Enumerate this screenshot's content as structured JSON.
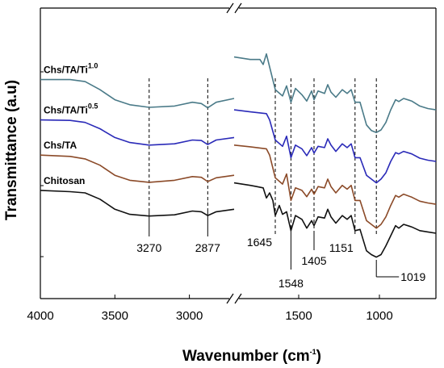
{
  "chart_data": {
    "type": "line",
    "xlabel": "Wavenumber (cm",
    "xlabel_sup": "-1",
    "xlabel_end": ")",
    "ylabel": "Transmittance (a.u)",
    "x_reversed": true,
    "axis_break": true,
    "segments": [
      {
        "xlim": [
          4000,
          2700
        ],
        "ticks": [
          4000,
          3500,
          3000
        ]
      },
      {
        "xlim": [
          1900,
          650
        ],
        "ticks": [
          1500,
          1000
        ]
      }
    ],
    "grid": false,
    "series": [
      {
        "name": "Chs/TA/Ti",
        "name_sup": "1.0",
        "color": "#4a7a88",
        "points": [
          [
            4000,
            0.78
          ],
          [
            3800,
            0.78
          ],
          [
            3700,
            0.772
          ],
          [
            3600,
            0.74
          ],
          [
            3500,
            0.7
          ],
          [
            3400,
            0.68
          ],
          [
            3270,
            0.67
          ],
          [
            3100,
            0.675
          ],
          [
            2980,
            0.69
          ],
          [
            2920,
            0.685
          ],
          [
            2877,
            0.668
          ],
          [
            2820,
            0.69
          ],
          [
            2700,
            0.705
          ],
          [
            1900,
            0.87
          ],
          [
            1800,
            0.86
          ],
          [
            1740,
            0.86
          ],
          [
            1720,
            0.84
          ],
          [
            1700,
            0.882
          ],
          [
            1680,
            0.83
          ],
          [
            1645,
            0.74
          ],
          [
            1600,
            0.715
          ],
          [
            1575,
            0.755
          ],
          [
            1548,
            0.69
          ],
          [
            1520,
            0.745
          ],
          [
            1480,
            0.72
          ],
          [
            1450,
            0.695
          ],
          [
            1420,
            0.735
          ],
          [
            1405,
            0.7
          ],
          [
            1380,
            0.735
          ],
          [
            1340,
            0.725
          ],
          [
            1320,
            0.76
          ],
          [
            1300,
            0.73
          ],
          [
            1270,
            0.71
          ],
          [
            1230,
            0.74
          ],
          [
            1200,
            0.725
          ],
          [
            1175,
            0.74
          ],
          [
            1151,
            0.69
          ],
          [
            1120,
            0.69
          ],
          [
            1080,
            0.6
          ],
          [
            1050,
            0.578
          ],
          [
            1019,
            0.57
          ],
          [
            990,
            0.58
          ],
          [
            960,
            0.61
          ],
          [
            930,
            0.66
          ],
          [
            900,
            0.7
          ],
          [
            880,
            0.693
          ],
          [
            850,
            0.705
          ],
          [
            800,
            0.695
          ],
          [
            750,
            0.675
          ],
          [
            700,
            0.665
          ],
          [
            650,
            0.66
          ]
        ]
      },
      {
        "name": "Chs/TA/Ti",
        "name_sup": "0.5",
        "color": "#2a2ab8",
        "points": [
          [
            4000,
            0.62
          ],
          [
            3800,
            0.618
          ],
          [
            3700,
            0.61
          ],
          [
            3600,
            0.585
          ],
          [
            3500,
            0.55
          ],
          [
            3400,
            0.53
          ],
          [
            3270,
            0.52
          ],
          [
            3100,
            0.525
          ],
          [
            2980,
            0.54
          ],
          [
            2920,
            0.538
          ],
          [
            2877,
            0.522
          ],
          [
            2820,
            0.54
          ],
          [
            2700,
            0.55
          ],
          [
            1900,
            0.66
          ],
          [
            1800,
            0.652
          ],
          [
            1700,
            0.645
          ],
          [
            1680,
            0.62
          ],
          [
            1645,
            0.54
          ],
          [
            1600,
            0.515
          ],
          [
            1575,
            0.555
          ],
          [
            1548,
            0.47
          ],
          [
            1520,
            0.52
          ],
          [
            1480,
            0.505
          ],
          [
            1450,
            0.478
          ],
          [
            1420,
            0.51
          ],
          [
            1405,
            0.488
          ],
          [
            1380,
            0.515
          ],
          [
            1340,
            0.51
          ],
          [
            1320,
            0.545
          ],
          [
            1300,
            0.52
          ],
          [
            1270,
            0.495
          ],
          [
            1230,
            0.525
          ],
          [
            1200,
            0.51
          ],
          [
            1175,
            0.525
          ],
          [
            1151,
            0.47
          ],
          [
            1120,
            0.47
          ],
          [
            1080,
            0.4
          ],
          [
            1050,
            0.385
          ],
          [
            1019,
            0.37
          ],
          [
            990,
            0.385
          ],
          [
            960,
            0.41
          ],
          [
            930,
            0.455
          ],
          [
            900,
            0.49
          ],
          [
            880,
            0.485
          ],
          [
            850,
            0.495
          ],
          [
            800,
            0.485
          ],
          [
            750,
            0.468
          ],
          [
            700,
            0.46
          ],
          [
            650,
            0.455
          ]
        ]
      },
      {
        "name": "Chs/TA",
        "name_sup": "",
        "color": "#8b4a28",
        "points": [
          [
            4000,
            0.48
          ],
          [
            3800,
            0.475
          ],
          [
            3700,
            0.465
          ],
          [
            3600,
            0.44
          ],
          [
            3500,
            0.4
          ],
          [
            3400,
            0.38
          ],
          [
            3270,
            0.372
          ],
          [
            3100,
            0.38
          ],
          [
            2980,
            0.395
          ],
          [
            2920,
            0.392
          ],
          [
            2877,
            0.375
          ],
          [
            2820,
            0.39
          ],
          [
            2700,
            0.4
          ],
          [
            1900,
            0.52
          ],
          [
            1800,
            0.513
          ],
          [
            1700,
            0.505
          ],
          [
            1680,
            0.48
          ],
          [
            1645,
            0.39
          ],
          [
            1600,
            0.365
          ],
          [
            1575,
            0.405
          ],
          [
            1548,
            0.3
          ],
          [
            1520,
            0.35
          ],
          [
            1480,
            0.34
          ],
          [
            1450,
            0.315
          ],
          [
            1420,
            0.345
          ],
          [
            1405,
            0.325
          ],
          [
            1380,
            0.355
          ],
          [
            1340,
            0.35
          ],
          [
            1320,
            0.385
          ],
          [
            1300,
            0.355
          ],
          [
            1270,
            0.33
          ],
          [
            1230,
            0.36
          ],
          [
            1200,
            0.345
          ],
          [
            1175,
            0.36
          ],
          [
            1151,
            0.3
          ],
          [
            1120,
            0.3
          ],
          [
            1080,
            0.22
          ],
          [
            1050,
            0.205
          ],
          [
            1019,
            0.19
          ],
          [
            990,
            0.205
          ],
          [
            960,
            0.235
          ],
          [
            930,
            0.28
          ],
          [
            900,
            0.32
          ],
          [
            880,
            0.313
          ],
          [
            850,
            0.325
          ],
          [
            800,
            0.313
          ],
          [
            750,
            0.297
          ],
          [
            700,
            0.29
          ],
          [
            650,
            0.285
          ]
        ]
      },
      {
        "name": "Chitosan",
        "name_sup": "",
        "color": "#111111",
        "points": [
          [
            4000,
            0.34
          ],
          [
            3800,
            0.335
          ],
          [
            3700,
            0.33
          ],
          [
            3600,
            0.305
          ],
          [
            3500,
            0.265
          ],
          [
            3400,
            0.245
          ],
          [
            3270,
            0.238
          ],
          [
            3100,
            0.243
          ],
          [
            2980,
            0.258
          ],
          [
            2920,
            0.255
          ],
          [
            2877,
            0.24
          ],
          [
            2820,
            0.255
          ],
          [
            2700,
            0.265
          ],
          [
            1900,
            0.37
          ],
          [
            1800,
            0.36
          ],
          [
            1760,
            0.355
          ],
          [
            1720,
            0.35
          ],
          [
            1700,
            0.31
          ],
          [
            1680,
            0.33
          ],
          [
            1660,
            0.3
          ],
          [
            1645,
            0.24
          ],
          [
            1620,
            0.28
          ],
          [
            1600,
            0.245
          ],
          [
            1575,
            0.255
          ],
          [
            1548,
            0.18
          ],
          [
            1520,
            0.24
          ],
          [
            1480,
            0.225
          ],
          [
            1450,
            0.19
          ],
          [
            1420,
            0.22
          ],
          [
            1405,
            0.2
          ],
          [
            1380,
            0.235
          ],
          [
            1340,
            0.23
          ],
          [
            1320,
            0.265
          ],
          [
            1300,
            0.235
          ],
          [
            1270,
            0.21
          ],
          [
            1230,
            0.24
          ],
          [
            1200,
            0.225
          ],
          [
            1175,
            0.24
          ],
          [
            1151,
            0.18
          ],
          [
            1120,
            0.185
          ],
          [
            1080,
            0.1
          ],
          [
            1050,
            0.085
          ],
          [
            1019,
            0.075
          ],
          [
            990,
            0.085
          ],
          [
            960,
            0.12
          ],
          [
            930,
            0.16
          ],
          [
            900,
            0.2
          ],
          [
            880,
            0.19
          ],
          [
            850,
            0.205
          ],
          [
            800,
            0.195
          ],
          [
            750,
            0.18
          ],
          [
            700,
            0.175
          ],
          [
            650,
            0.17
          ]
        ]
      }
    ],
    "peaks_high": [
      3270,
      2877
    ],
    "peaks_fingerprint": [
      1645,
      1548,
      1405,
      1151,
      1019
    ],
    "peak_labels": [
      "3270",
      "2877",
      "1645",
      "1548",
      "1405",
      "1151",
      "1019"
    ]
  }
}
